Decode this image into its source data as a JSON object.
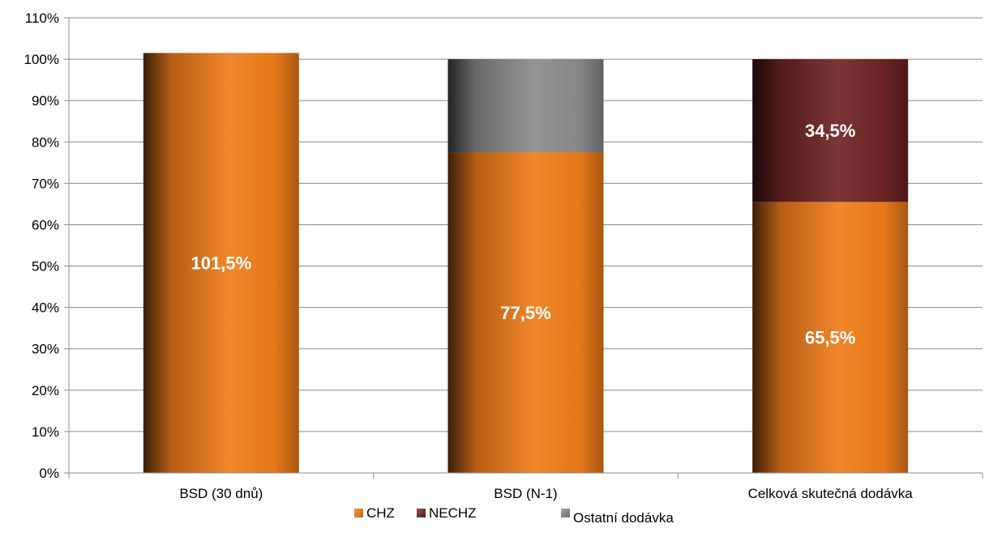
{
  "chart_data": {
    "type": "bar",
    "stacked": true,
    "categories": [
      "BSD (30 dnů)",
      "BSD (N-1)",
      "Celková skutečná dodávka"
    ],
    "series": [
      {
        "name": "CHZ",
        "values": [
          101.5,
          77.5,
          65.5
        ],
        "labels": [
          "101,5%",
          "77,5%",
          "65,5%"
        ],
        "color": "#f07d1a"
      },
      {
        "name": "NECHZ",
        "values": [
          0,
          0,
          34.5
        ],
        "labels": [
          "",
          "",
          "34,5%"
        ],
        "color": "#6e2424"
      },
      {
        "name": "Ostatní dodávka",
        "values": [
          0,
          22.5,
          0
        ],
        "labels": [
          "",
          "",
          ""
        ],
        "color": "#8c8c8c"
      }
    ],
    "yticks": [
      "0%",
      "10%",
      "20%",
      "30%",
      "40%",
      "50%",
      "60%",
      "70%",
      "80%",
      "90%",
      "100%",
      "110%"
    ],
    "ylim": [
      0,
      110
    ],
    "grid": true,
    "legend_position": "bottom",
    "title": "",
    "xlabel": "",
    "ylabel": ""
  }
}
